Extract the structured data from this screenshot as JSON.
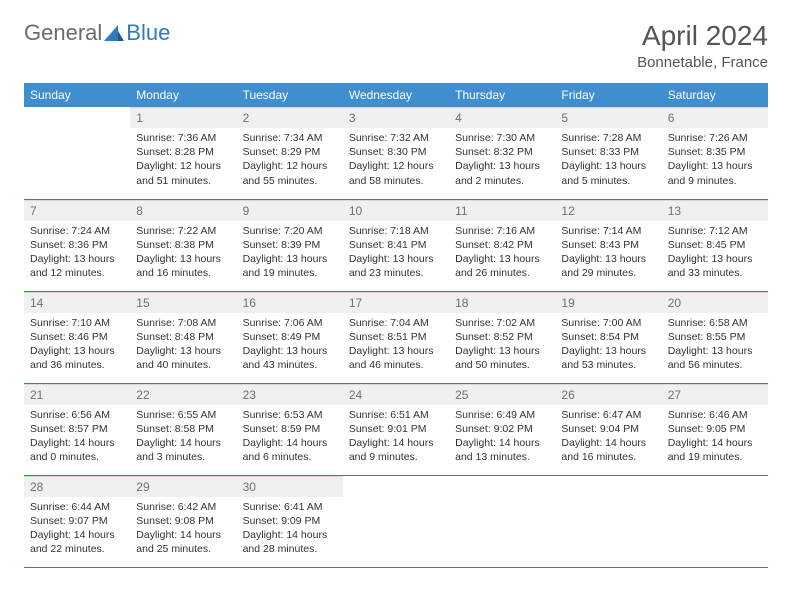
{
  "logo": {
    "general": "General",
    "blue": "Blue"
  },
  "title": "April 2024",
  "location": "Bonnetable, France",
  "header_bg": "#3e8ed0",
  "header_text": "#ffffff",
  "border_color": "#2f7bbf",
  "daynum_bg": "#f0f0f0",
  "daynum_color": "#707070",
  "text_color": "#333333",
  "days_of_week": [
    "Sunday",
    "Monday",
    "Tuesday",
    "Wednesday",
    "Thursday",
    "Friday",
    "Saturday"
  ],
  "weeks": [
    [
      null,
      {
        "n": "1",
        "sr": "Sunrise: 7:36 AM",
        "ss": "Sunset: 8:28 PM",
        "dl": "Daylight: 12 hours and 51 minutes."
      },
      {
        "n": "2",
        "sr": "Sunrise: 7:34 AM",
        "ss": "Sunset: 8:29 PM",
        "dl": "Daylight: 12 hours and 55 minutes."
      },
      {
        "n": "3",
        "sr": "Sunrise: 7:32 AM",
        "ss": "Sunset: 8:30 PM",
        "dl": "Daylight: 12 hours and 58 minutes."
      },
      {
        "n": "4",
        "sr": "Sunrise: 7:30 AM",
        "ss": "Sunset: 8:32 PM",
        "dl": "Daylight: 13 hours and 2 minutes."
      },
      {
        "n": "5",
        "sr": "Sunrise: 7:28 AM",
        "ss": "Sunset: 8:33 PM",
        "dl": "Daylight: 13 hours and 5 minutes."
      },
      {
        "n": "6",
        "sr": "Sunrise: 7:26 AM",
        "ss": "Sunset: 8:35 PM",
        "dl": "Daylight: 13 hours and 9 minutes."
      }
    ],
    [
      {
        "n": "7",
        "sr": "Sunrise: 7:24 AM",
        "ss": "Sunset: 8:36 PM",
        "dl": "Daylight: 13 hours and 12 minutes."
      },
      {
        "n": "8",
        "sr": "Sunrise: 7:22 AM",
        "ss": "Sunset: 8:38 PM",
        "dl": "Daylight: 13 hours and 16 minutes."
      },
      {
        "n": "9",
        "sr": "Sunrise: 7:20 AM",
        "ss": "Sunset: 8:39 PM",
        "dl": "Daylight: 13 hours and 19 minutes."
      },
      {
        "n": "10",
        "sr": "Sunrise: 7:18 AM",
        "ss": "Sunset: 8:41 PM",
        "dl": "Daylight: 13 hours and 23 minutes."
      },
      {
        "n": "11",
        "sr": "Sunrise: 7:16 AM",
        "ss": "Sunset: 8:42 PM",
        "dl": "Daylight: 13 hours and 26 minutes."
      },
      {
        "n": "12",
        "sr": "Sunrise: 7:14 AM",
        "ss": "Sunset: 8:43 PM",
        "dl": "Daylight: 13 hours and 29 minutes."
      },
      {
        "n": "13",
        "sr": "Sunrise: 7:12 AM",
        "ss": "Sunset: 8:45 PM",
        "dl": "Daylight: 13 hours and 33 minutes."
      }
    ],
    [
      {
        "n": "14",
        "sr": "Sunrise: 7:10 AM",
        "ss": "Sunset: 8:46 PM",
        "dl": "Daylight: 13 hours and 36 minutes."
      },
      {
        "n": "15",
        "sr": "Sunrise: 7:08 AM",
        "ss": "Sunset: 8:48 PM",
        "dl": "Daylight: 13 hours and 40 minutes."
      },
      {
        "n": "16",
        "sr": "Sunrise: 7:06 AM",
        "ss": "Sunset: 8:49 PM",
        "dl": "Daylight: 13 hours and 43 minutes."
      },
      {
        "n": "17",
        "sr": "Sunrise: 7:04 AM",
        "ss": "Sunset: 8:51 PM",
        "dl": "Daylight: 13 hours and 46 minutes."
      },
      {
        "n": "18",
        "sr": "Sunrise: 7:02 AM",
        "ss": "Sunset: 8:52 PM",
        "dl": "Daylight: 13 hours and 50 minutes."
      },
      {
        "n": "19",
        "sr": "Sunrise: 7:00 AM",
        "ss": "Sunset: 8:54 PM",
        "dl": "Daylight: 13 hours and 53 minutes."
      },
      {
        "n": "20",
        "sr": "Sunrise: 6:58 AM",
        "ss": "Sunset: 8:55 PM",
        "dl": "Daylight: 13 hours and 56 minutes."
      }
    ],
    [
      {
        "n": "21",
        "sr": "Sunrise: 6:56 AM",
        "ss": "Sunset: 8:57 PM",
        "dl": "Daylight: 14 hours and 0 minutes."
      },
      {
        "n": "22",
        "sr": "Sunrise: 6:55 AM",
        "ss": "Sunset: 8:58 PM",
        "dl": "Daylight: 14 hours and 3 minutes."
      },
      {
        "n": "23",
        "sr": "Sunrise: 6:53 AM",
        "ss": "Sunset: 8:59 PM",
        "dl": "Daylight: 14 hours and 6 minutes."
      },
      {
        "n": "24",
        "sr": "Sunrise: 6:51 AM",
        "ss": "Sunset: 9:01 PM",
        "dl": "Daylight: 14 hours and 9 minutes."
      },
      {
        "n": "25",
        "sr": "Sunrise: 6:49 AM",
        "ss": "Sunset: 9:02 PM",
        "dl": "Daylight: 14 hours and 13 minutes."
      },
      {
        "n": "26",
        "sr": "Sunrise: 6:47 AM",
        "ss": "Sunset: 9:04 PM",
        "dl": "Daylight: 14 hours and 16 minutes."
      },
      {
        "n": "27",
        "sr": "Sunrise: 6:46 AM",
        "ss": "Sunset: 9:05 PM",
        "dl": "Daylight: 14 hours and 19 minutes."
      }
    ],
    [
      {
        "n": "28",
        "sr": "Sunrise: 6:44 AM",
        "ss": "Sunset: 9:07 PM",
        "dl": "Daylight: 14 hours and 22 minutes."
      },
      {
        "n": "29",
        "sr": "Sunrise: 6:42 AM",
        "ss": "Sunset: 9:08 PM",
        "dl": "Daylight: 14 hours and 25 minutes."
      },
      {
        "n": "30",
        "sr": "Sunrise: 6:41 AM",
        "ss": "Sunset: 9:09 PM",
        "dl": "Daylight: 14 hours and 28 minutes."
      },
      null,
      null,
      null,
      null
    ]
  ]
}
